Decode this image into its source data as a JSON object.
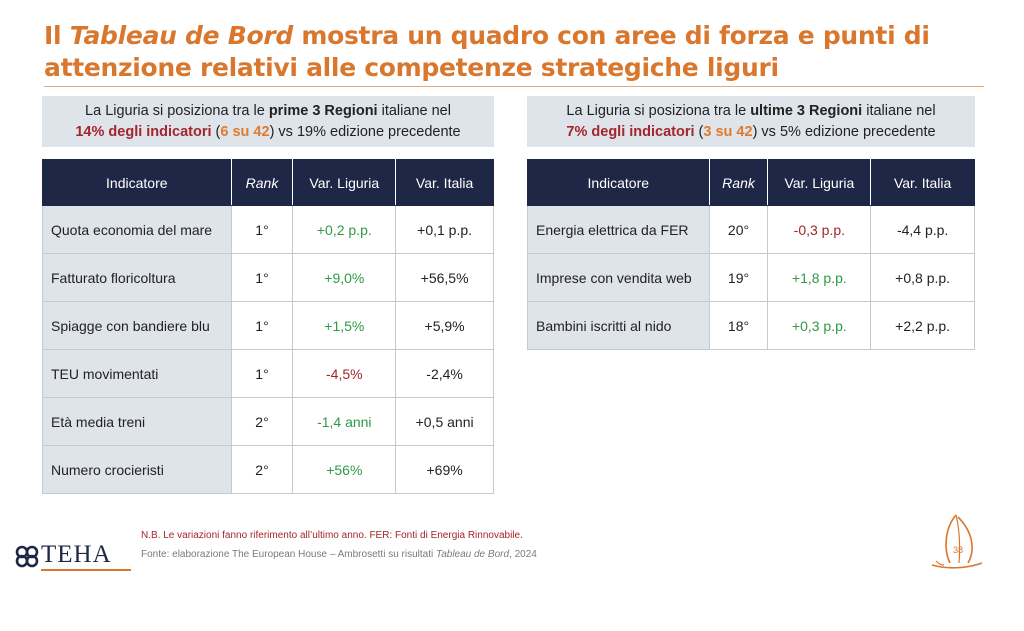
{
  "title": {
    "prefix": "Il ",
    "italic": "Tableau de Bord",
    "suffix": " mostra un quadro con aree di forza e punti di attenzione relativi alle competenze strategiche liguri"
  },
  "left_panel": {
    "banner": {
      "line1_pre": "La Liguria si posiziona tra le ",
      "line1_bold": "prime 3 Regioni",
      "line1_post": " italiane nel",
      "pct": "14% degli indicatori",
      "paren_open": " (",
      "count": "6 su 42",
      "paren_close": ")",
      "tail": " vs 19% edizione precedente"
    },
    "headers": [
      "Indicatore",
      "Rank",
      "Var. Liguria",
      "Var. Italia"
    ],
    "rows": [
      {
        "indicator": "Quota economia del mare",
        "rank": "1°",
        "var_liguria": "+0,2 p.p.",
        "var_italia": "+0,1 p.p."
      },
      {
        "indicator": "Fatturato floricoltura",
        "rank": "1°",
        "var_liguria": "+9,0%",
        "var_italia": "+56,5%"
      },
      {
        "indicator": "Spiagge con bandiere blu",
        "rank": "1°",
        "var_liguria": "+1,5%",
        "var_italia": "+5,9%"
      },
      {
        "indicator": "TEU movimentati",
        "rank": "1°",
        "var_liguria": "-4,5%",
        "var_italia": "-2,4%"
      },
      {
        "indicator": "Età media treni",
        "rank": "2°",
        "var_liguria": "-1,4 anni",
        "var_italia": "+0,5 anni"
      },
      {
        "indicator": "Numero crocieristi",
        "rank": "2°",
        "var_liguria": "+56%",
        "var_italia": "+69%"
      }
    ]
  },
  "right_panel": {
    "banner": {
      "line1_pre": "La Liguria si posiziona tra le ",
      "line1_bold": "ultime 3 Regioni",
      "line1_post": " italiane nel",
      "pct": "7% degli indicatori",
      "paren_open": " (",
      "count": "3 su 42",
      "paren_close": ")",
      "tail": " vs 5% edizione precedente"
    },
    "headers": [
      "Indicatore",
      "Rank",
      "Var. Liguria",
      "Var. Italia"
    ],
    "rows": [
      {
        "indicator": "Energia elettrica da FER",
        "rank": "20°",
        "var_liguria": "-0,3 p.p.",
        "var_italia": "-4,4 p.p."
      },
      {
        "indicator": "Imprese con vendita web",
        "rank": "19°",
        "var_liguria": "+1,8 p.p.",
        "var_italia": "+0,8 p.p."
      },
      {
        "indicator": "Bambini iscritti al nido",
        "rank": "18°",
        "var_liguria": "+0,3 p.p.",
        "var_italia": "+2,2 p.p."
      }
    ]
  },
  "footer": {
    "note": "N.B. Le variazioni fanno riferimento all’ultimo anno. FER: Fonti di Energia Rinnovabile.",
    "source_pre": "Fonte: elaborazione The European House – Ambrosetti su risultati ",
    "source_italic": "Tableau de Bord",
    "source_post": ", 2024",
    "logo_text": "TEHA",
    "page_number": "38"
  },
  "colors": {
    "accent": "#d9772e",
    "header_navy": "#1f2747",
    "positive": "#2f9a45",
    "negative": "#a3262a",
    "banner_bg": "#dfe3ea"
  }
}
